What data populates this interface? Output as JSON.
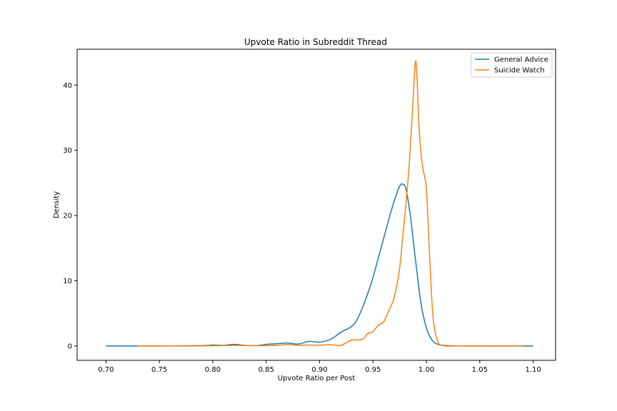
{
  "chart_data": {
    "type": "line",
    "title": "Upvote Ratio in Subreddit Thread",
    "xlabel": "Upvote Ratio per Post",
    "ylabel": "Density",
    "xlim": [
      0.673,
      1.121
    ],
    "ylim": [
      -2.2,
      45.5
    ],
    "xticks": [
      0.7,
      0.75,
      0.8,
      0.85,
      0.9,
      0.95,
      1.0,
      1.05,
      1.1
    ],
    "xtick_labels": [
      "0.70",
      "0.75",
      "0.80",
      "0.85",
      "0.90",
      "0.95",
      "1.00",
      "1.05",
      "1.10"
    ],
    "yticks": [
      0,
      10,
      20,
      30,
      40
    ],
    "ytick_labels": [
      "0",
      "10",
      "20",
      "30",
      "40"
    ],
    "grid": false,
    "legend_position": "top-right",
    "series": [
      {
        "name": "General Advice",
        "color": "#1f77b4",
        "x": [
          0.7,
          0.75,
          0.79,
          0.8,
          0.81,
          0.82,
          0.83,
          0.84,
          0.85,
          0.86,
          0.87,
          0.88,
          0.89,
          0.9,
          0.91,
          0.92,
          0.93,
          0.935,
          0.94,
          0.945,
          0.95,
          0.955,
          0.96,
          0.965,
          0.97,
          0.975,
          0.978,
          0.981,
          0.985,
          0.99,
          0.995,
          1.0,
          1.005,
          1.01,
          1.02,
          1.05,
          1.1
        ],
        "y": [
          0,
          0,
          0.05,
          0.15,
          0.1,
          0.25,
          0.1,
          0.05,
          0.25,
          0.35,
          0.45,
          0.3,
          0.7,
          0.6,
          1.0,
          2.1,
          3.0,
          4.0,
          5.8,
          8.0,
          10.5,
          13.5,
          16.5,
          19.5,
          22.3,
          24.5,
          24.8,
          24.0,
          20.0,
          13.0,
          6.5,
          2.8,
          1.0,
          0.3,
          0.05,
          0,
          0
        ]
      },
      {
        "name": "Suicide Watch",
        "color": "#ff7f0e",
        "x": [
          0.73,
          0.78,
          0.8,
          0.82,
          0.84,
          0.86,
          0.87,
          0.88,
          0.89,
          0.9,
          0.91,
          0.92,
          0.93,
          0.94,
          0.945,
          0.95,
          0.955,
          0.96,
          0.965,
          0.97,
          0.975,
          0.978,
          0.981,
          0.984,
          0.987,
          0.9895,
          0.991,
          0.993,
          0.995,
          0.997,
          1.0,
          1.003,
          1.006,
          1.01,
          1.015,
          1.03,
          1.09
        ],
        "y": [
          0,
          0,
          0.05,
          0.1,
          0.05,
          0.1,
          0.2,
          0.1,
          0.15,
          0.1,
          0.2,
          0.1,
          0.9,
          1.0,
          1.9,
          2.2,
          3.2,
          3.7,
          5.5,
          7.5,
          12.0,
          17.0,
          22.0,
          28.0,
          36.0,
          43.2,
          42.0,
          34.0,
          29.5,
          27.0,
          24.0,
          14.0,
          5.0,
          1.0,
          0.1,
          0,
          0
        ]
      }
    ]
  }
}
